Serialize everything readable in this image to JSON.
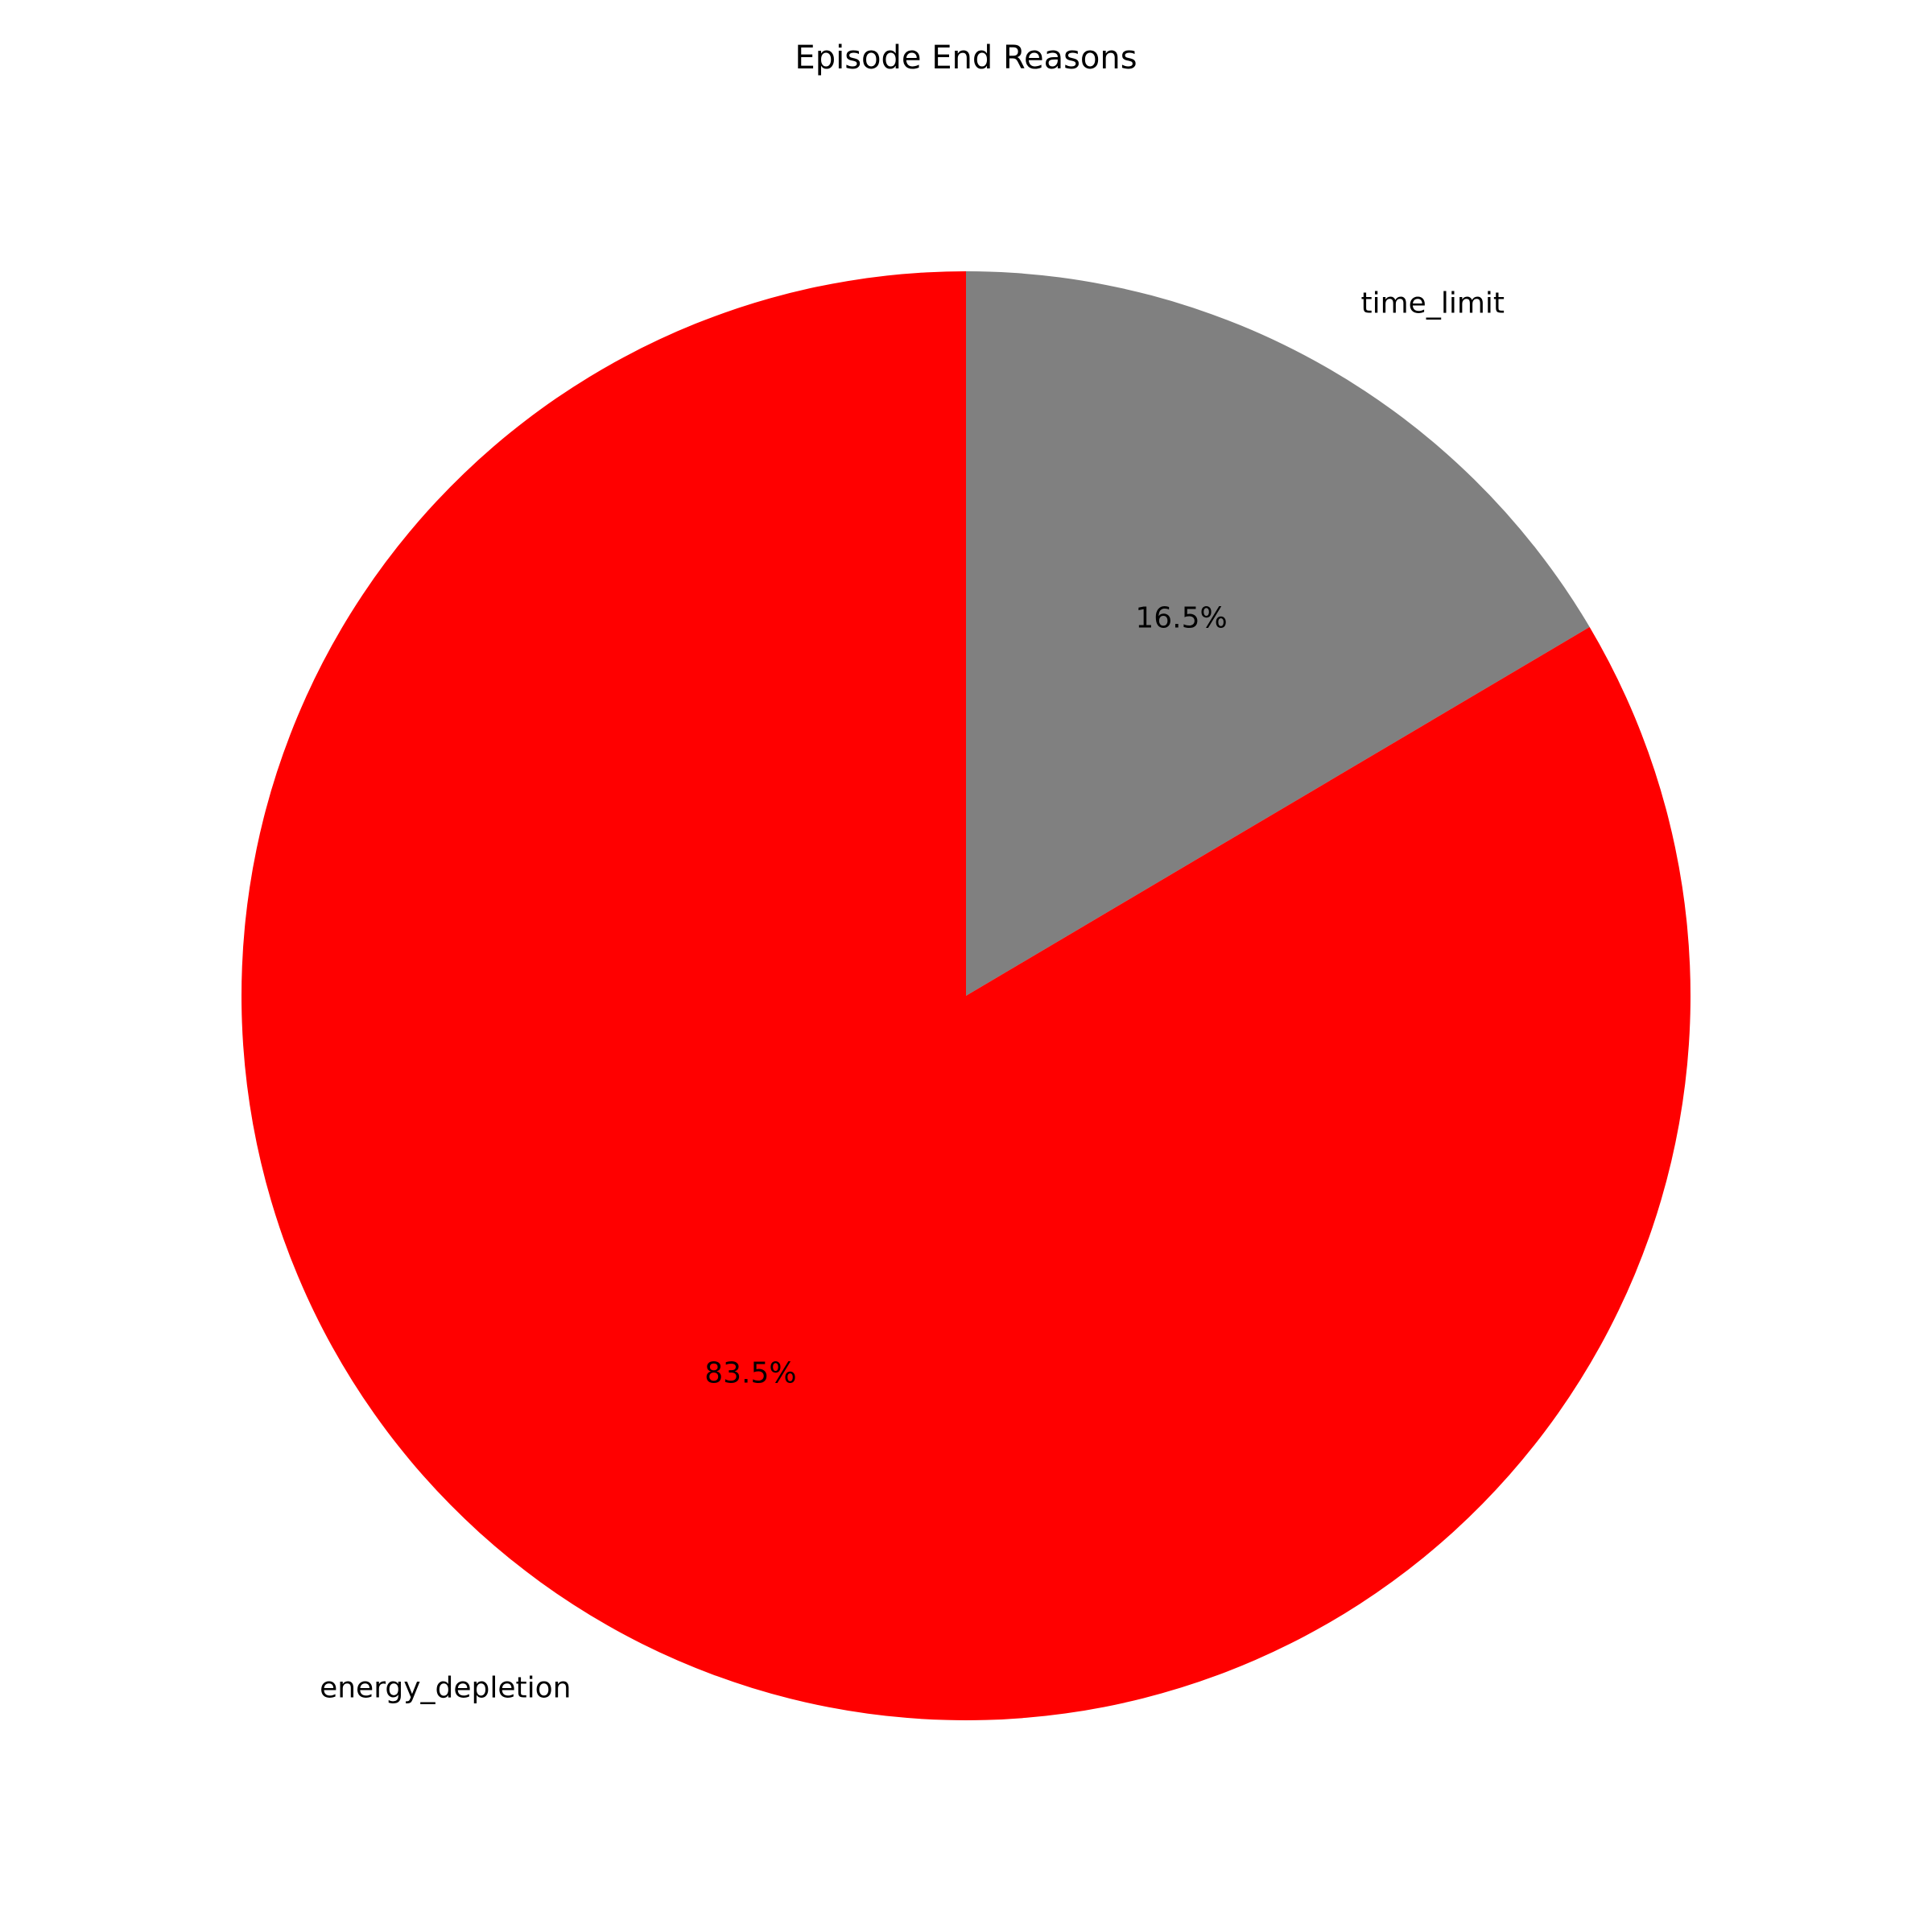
{
  "chart_data": {
    "type": "pie",
    "title": "Episode End Reasons",
    "start_angle_deg": 90,
    "direction": "clockwise",
    "slices": [
      {
        "label": "time_limit",
        "value": 16.5,
        "pct_label": "16.5%",
        "color": "#808080"
      },
      {
        "label": "energy_depletion",
        "value": 83.5,
        "pct_label": "83.5%",
        "color": "#ff0000"
      }
    ]
  }
}
